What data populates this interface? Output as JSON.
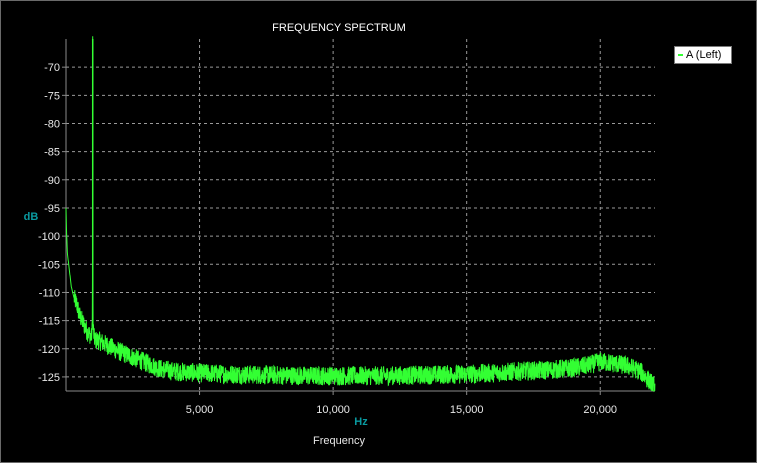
{
  "chart_data": {
    "type": "line",
    "title": "FREQUENCY SPECTRUM",
    "ylabel": "dB",
    "xunit": "Hz",
    "xlabel": "Frequency",
    "xlim": [
      0,
      22050
    ],
    "ylim": [
      -127.5,
      -65
    ],
    "x_ticks": [
      {
        "value": 5000,
        "label": "5,000"
      },
      {
        "value": 10000,
        "label": "10,000"
      },
      {
        "value": 15000,
        "label": "15,000"
      },
      {
        "value": 20000,
        "label": "20,000"
      }
    ],
    "y_ticks": [
      {
        "value": -70,
        "label": "-70"
      },
      {
        "value": -75,
        "label": "-75"
      },
      {
        "value": -80,
        "label": "-80"
      },
      {
        "value": -85,
        "label": "-85"
      },
      {
        "value": -90,
        "label": "-90"
      },
      {
        "value": -95,
        "label": "-95"
      },
      {
        "value": -100,
        "label": "-100"
      },
      {
        "value": -105,
        "label": "-105"
      },
      {
        "value": -110,
        "label": "-110"
      },
      {
        "value": -115,
        "label": "-115"
      },
      {
        "value": -120,
        "label": "-120"
      },
      {
        "value": -125,
        "label": "-125"
      }
    ],
    "grid": true,
    "legend_position": "top-right",
    "series": [
      {
        "name": "A (Left)",
        "color": "#33ff33",
        "points": [
          [
            0,
            -95
          ],
          [
            20,
            -99
          ],
          [
            50,
            -103
          ],
          [
            100,
            -105
          ],
          [
            150,
            -107
          ],
          [
            200,
            -109
          ],
          [
            250,
            -110
          ],
          [
            300,
            -111
          ],
          [
            400,
            -112
          ],
          [
            500,
            -114
          ],
          [
            600,
            -115
          ],
          [
            700,
            -116
          ],
          [
            800,
            -117
          ],
          [
            900,
            -117.5
          ],
          [
            950,
            -118
          ],
          [
            990,
            -116
          ],
          [
            1000,
            -65
          ],
          [
            1010,
            -116
          ],
          [
            1050,
            -118
          ],
          [
            1100,
            -118.5
          ],
          [
            1200,
            -118.5
          ],
          [
            1400,
            -119
          ],
          [
            1600,
            -119.5
          ],
          [
            1800,
            -120
          ],
          [
            2000,
            -120.5
          ],
          [
            2500,
            -121.5
          ],
          [
            3000,
            -122.5
          ],
          [
            3500,
            -123.5
          ],
          [
            4000,
            -124
          ],
          [
            5000,
            -124.3
          ],
          [
            6000,
            -124.5
          ],
          [
            7000,
            -124.6
          ],
          [
            8000,
            -124.7
          ],
          [
            9000,
            -124.8
          ],
          [
            10000,
            -124.8
          ],
          [
            11000,
            -124.8
          ],
          [
            12000,
            -124.8
          ],
          [
            13000,
            -124.7
          ],
          [
            14000,
            -124.6
          ],
          [
            15000,
            -124.5
          ],
          [
            16000,
            -124.3
          ],
          [
            17000,
            -124
          ],
          [
            18000,
            -123.8
          ],
          [
            19000,
            -123.4
          ],
          [
            19500,
            -123
          ],
          [
            20000,
            -122.3
          ],
          [
            20500,
            -122.6
          ],
          [
            21000,
            -123
          ],
          [
            21500,
            -124
          ],
          [
            22000,
            -126.5
          ],
          [
            22050,
            -126.8
          ]
        ]
      }
    ]
  }
}
